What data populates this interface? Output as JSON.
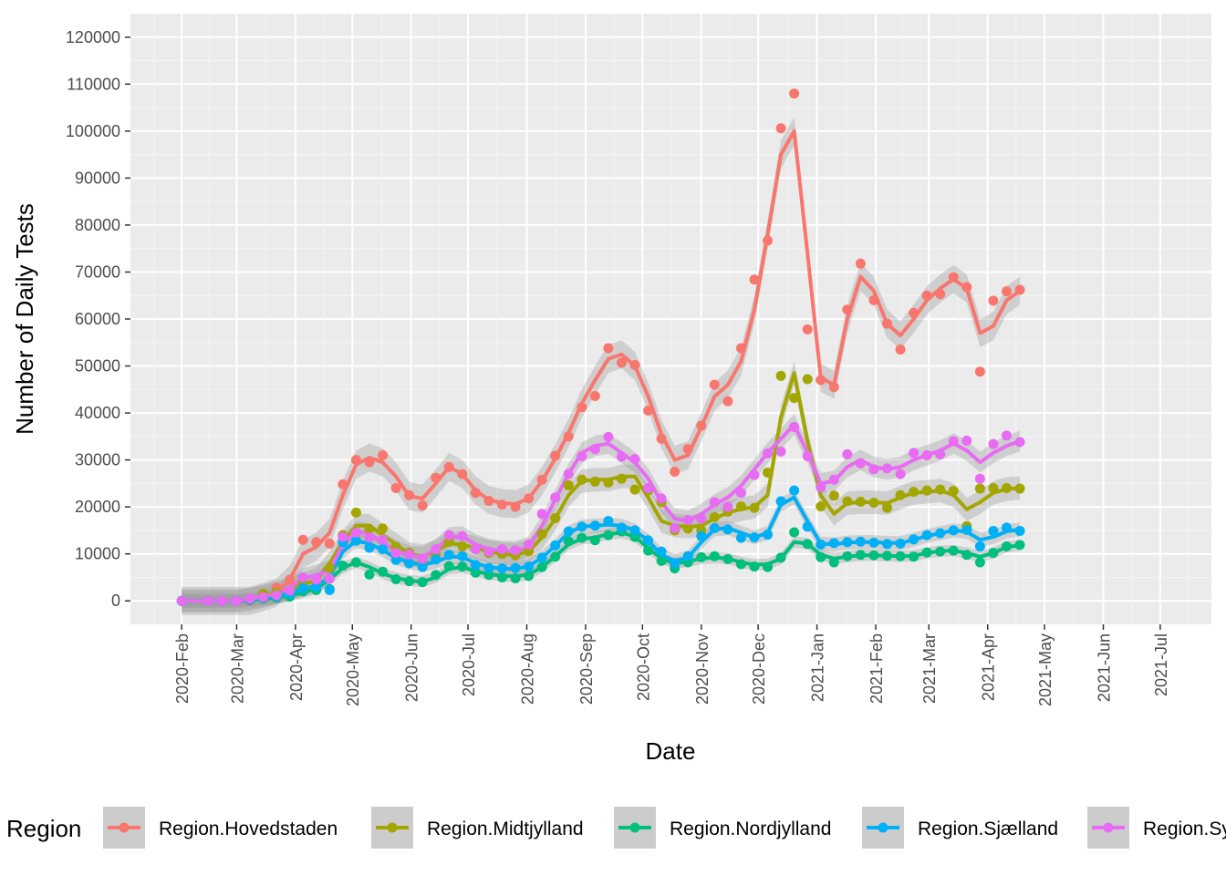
{
  "chart_data": {
    "type": "line",
    "title": "",
    "xlabel": "Date",
    "ylabel": "Number of Daily Tests",
    "ylim": [
      -5000,
      125000
    ],
    "xlim": [
      "2020-01-05",
      "2021-07-28"
    ],
    "grid": true,
    "legend": {
      "title": "Region",
      "position": "bottom"
    },
    "x_ticks": [
      "2020-Feb",
      "2020-Mar",
      "2020-Apr",
      "2020-May",
      "2020-Jun",
      "2020-Jul",
      "2020-Aug",
      "2020-Sep",
      "2020-Oct",
      "2020-Nov",
      "2020-Dec",
      "2021-Jan",
      "2021-Feb",
      "2021-Mar",
      "2021-Apr",
      "2021-May",
      "2021-Jun",
      "2021-Jul"
    ],
    "x_tick_dates": [
      "2020-02-01",
      "2020-03-01",
      "2020-04-01",
      "2020-05-01",
      "2020-06-01",
      "2020-07-01",
      "2020-08-01",
      "2020-09-01",
      "2020-10-01",
      "2020-11-01",
      "2020-12-01",
      "2021-01-01",
      "2021-02-01",
      "2021-03-01",
      "2021-04-01",
      "2021-05-01",
      "2021-06-01",
      "2021-07-01"
    ],
    "y_ticks": [
      0,
      10000,
      20000,
      30000,
      40000,
      50000,
      60000,
      70000,
      80000,
      90000,
      100000,
      110000,
      120000
    ],
    "dates": [
      "2020-02-01",
      "2020-02-15",
      "2020-02-22",
      "2020-03-01",
      "2020-03-08",
      "2020-03-15",
      "2020-03-22",
      "2020-03-29",
      "2020-04-05",
      "2020-04-12",
      "2020-04-19",
      "2020-04-26",
      "2020-05-03",
      "2020-05-10",
      "2020-05-17",
      "2020-05-24",
      "2020-05-31",
      "2020-06-07",
      "2020-06-14",
      "2020-06-21",
      "2020-06-28",
      "2020-07-05",
      "2020-07-12",
      "2020-07-19",
      "2020-07-26",
      "2020-08-02",
      "2020-08-09",
      "2020-08-16",
      "2020-08-23",
      "2020-08-30",
      "2020-09-06",
      "2020-09-13",
      "2020-09-20",
      "2020-09-27",
      "2020-10-04",
      "2020-10-11",
      "2020-10-18",
      "2020-10-25",
      "2020-11-01",
      "2020-11-08",
      "2020-11-15",
      "2020-11-22",
      "2020-11-29",
      "2020-12-06",
      "2020-12-13",
      "2020-12-20",
      "2020-12-27",
      "2021-01-03",
      "2021-01-10",
      "2021-01-17",
      "2021-01-24",
      "2021-01-31",
      "2021-02-07",
      "2021-02-14",
      "2021-02-21",
      "2021-02-28",
      "2021-03-07",
      "2021-03-14",
      "2021-03-21",
      "2021-03-28",
      "2021-04-04",
      "2021-04-11",
      "2021-04-18"
    ],
    "series": [
      {
        "name": "Region.Hovedstaden",
        "color": "#F8766D",
        "points": [
          0,
          0,
          0,
          0,
          0,
          1500,
          2800,
          4500,
          13000,
          12500,
          12200,
          24800,
          30000,
          29500,
          31000,
          24000,
          22500,
          20300,
          26200,
          28500,
          27000,
          23000,
          21300,
          20500,
          20000,
          21800,
          25800,
          30900,
          35000,
          41200,
          43600,
          53800,
          50700,
          50200,
          40500,
          34500,
          27500,
          32300,
          37300,
          46000,
          42500,
          53800,
          68400,
          76700,
          100600,
          108000,
          57800,
          47000,
          45500,
          62000,
          71800,
          64000,
          59000,
          53500,
          61300,
          65000,
          65300,
          68900,
          66800,
          48800,
          63900,
          65900,
          66200
        ],
        "fit": [
          0,
          0,
          0,
          0,
          0,
          800,
          1800,
          4500,
          10000,
          11500,
          14500,
          22500,
          29000,
          30500,
          29500,
          26500,
          22300,
          21800,
          25000,
          28500,
          27000,
          23500,
          21500,
          20800,
          20600,
          21800,
          25500,
          30300,
          35700,
          42000,
          47000,
          51500,
          52500,
          50000,
          43500,
          35500,
          30000,
          31000,
          37000,
          43500,
          46000,
          51000,
          62000,
          78000,
          95000,
          100000,
          74000,
          47500,
          46000,
          60000,
          69000,
          66000,
          59000,
          56500,
          60000,
          64000,
          66500,
          68500,
          66500,
          57000,
          58500,
          64000,
          66000
        ],
        "band": 3000
      },
      {
        "name": "Region.Midtjylland",
        "color": "#A3A500",
        "points": [
          0,
          0,
          0,
          0,
          300,
          1500,
          1800,
          2200,
          3800,
          4000,
          7000,
          14000,
          18800,
          15300,
          15400,
          11500,
          10300,
          8500,
          9700,
          12600,
          11600,
          11000,
          10200,
          10000,
          9700,
          10600,
          14200,
          17600,
          24600,
          25800,
          25400,
          25200,
          26000,
          23700,
          23500,
          21000,
          15000,
          15400,
          15000,
          17800,
          19000,
          20100,
          19800,
          27300,
          47900,
          43200,
          47200,
          20100,
          22400,
          21200,
          21100,
          20900,
          19800,
          22500,
          23200,
          23500,
          23700,
          23400,
          15900,
          23900,
          24000,
          24000,
          23900
        ],
        "fit": [
          0,
          0,
          0,
          0,
          300,
          1000,
          1800,
          2500,
          3500,
          4500,
          8000,
          12500,
          16000,
          16000,
          14000,
          12000,
          10000,
          9500,
          10500,
          12200,
          12000,
          11200,
          10500,
          10000,
          9800,
          10500,
          13500,
          17500,
          22500,
          25500,
          25800,
          25800,
          26500,
          26500,
          22000,
          17000,
          16000,
          15800,
          16000,
          17500,
          18800,
          19500,
          20000,
          22500,
          39000,
          48500,
          34000,
          22500,
          18500,
          20800,
          21000,
          21000,
          20800,
          22000,
          23000,
          23200,
          23500,
          22500,
          19500,
          21000,
          23000,
          23800,
          24000
        ],
        "band": 2500
      },
      {
        "name": "Region.Nordjylland",
        "color": "#00BF7D",
        "points": [
          0,
          0,
          0,
          0,
          200,
          500,
          700,
          900,
          2000,
          2300,
          2500,
          7500,
          8200,
          5600,
          6200,
          4600,
          4200,
          4000,
          5500,
          7400,
          7300,
          6000,
          5500,
          5000,
          4800,
          5300,
          7200,
          9400,
          12700,
          13400,
          12900,
          14000,
          14800,
          13600,
          10700,
          8500,
          6900,
          8200,
          9300,
          9500,
          8900,
          7800,
          7300,
          7200,
          9200,
          14600,
          12100,
          9300,
          8200,
          9500,
          9800,
          9700,
          9600,
          9500,
          9400,
          10300,
          10500,
          10700,
          9800,
          8200,
          10200,
          11600,
          11900
        ],
        "fit": [
          0,
          0,
          0,
          0,
          200,
          400,
          700,
          1100,
          1800,
          2600,
          4500,
          7000,
          8200,
          7200,
          5800,
          4900,
          4300,
          4100,
          5000,
          6800,
          7200,
          6300,
          5700,
          5300,
          5200,
          5600,
          7200,
          9500,
          12000,
          13200,
          13500,
          14200,
          14500,
          13700,
          11200,
          9000,
          8000,
          8400,
          9000,
          9200,
          9000,
          8200,
          7700,
          7800,
          9000,
          12500,
          12200,
          9800,
          9000,
          9400,
          9700,
          9700,
          9600,
          9500,
          9600,
          10200,
          10600,
          10700,
          10200,
          9400,
          10200,
          11500,
          11800
        ],
        "band": 1200
      },
      {
        "name": "Region.Sjælland",
        "color": "#00B0F6",
        "points": [
          0,
          0,
          0,
          0,
          300,
          700,
          1000,
          1500,
          2700,
          3000,
          2300,
          12500,
          12800,
          11300,
          11000,
          8700,
          8000,
          7200,
          8800,
          9800,
          9500,
          7600,
          7000,
          6900,
          7000,
          7300,
          9200,
          11800,
          14800,
          15800,
          16000,
          17000,
          15600,
          15000,
          12900,
          10500,
          8000,
          9500,
          13800,
          15500,
          15200,
          13400,
          13500,
          14100,
          21200,
          23500,
          15800,
          12000,
          12300,
          12500,
          12600,
          12400,
          12100,
          12200,
          13100,
          14000,
          14400,
          15000,
          15100,
          11600,
          14900,
          15600,
          14900
        ],
        "fit": [
          0,
          0,
          0,
          0,
          300,
          600,
          1000,
          1600,
          2700,
          3000,
          5000,
          10500,
          12800,
          12200,
          10800,
          9200,
          8200,
          7700,
          8300,
          9400,
          9300,
          8000,
          7200,
          6900,
          6800,
          7400,
          9200,
          11700,
          14500,
          15800,
          16000,
          16200,
          16000,
          15000,
          12800,
          9800,
          8500,
          9200,
          12500,
          15200,
          15500,
          14500,
          13500,
          14500,
          20500,
          22000,
          17000,
          12200,
          12000,
          12400,
          12500,
          12500,
          12300,
          12300,
          13000,
          13800,
          14400,
          15000,
          14700,
          13000,
          13600,
          14800,
          15200
        ],
        "band": 1500
      },
      {
        "name": "Region.Syddanmark",
        "color": "#E76BF3",
        "points": [
          0,
          0,
          0,
          0,
          500,
          800,
          1200,
          2200,
          5000,
          4500,
          4700,
          13600,
          14500,
          13500,
          13000,
          10200,
          9900,
          9000,
          11000,
          14000,
          13800,
          11000,
          10500,
          11000,
          10800,
          12000,
          18500,
          22000,
          27000,
          30800,
          32300,
          34900,
          30700,
          30200,
          24000,
          21800,
          15500,
          17200,
          17500,
          21000,
          20000,
          23000,
          26800,
          31400,
          31800,
          37000,
          30800,
          24200,
          25800,
          31200,
          29300,
          28000,
          28200,
          27000,
          31500,
          31000,
          31200,
          34000,
          34100,
          26000,
          33400,
          35200,
          33800
        ],
        "fit": [
          0,
          0,
          0,
          0,
          500,
          900,
          1500,
          2800,
          4800,
          5500,
          6500,
          12000,
          14800,
          14300,
          12500,
          10700,
          9600,
          9300,
          11000,
          13500,
          13700,
          12000,
          11000,
          10600,
          10500,
          11500,
          16000,
          21500,
          27000,
          31500,
          33000,
          33500,
          31500,
          29500,
          26000,
          21000,
          17500,
          17000,
          18500,
          20500,
          22000,
          24500,
          28000,
          31500,
          34500,
          37500,
          31500,
          25000,
          25500,
          28500,
          30000,
          28500,
          28000,
          28500,
          30000,
          31000,
          32000,
          33500,
          32000,
          29500,
          31500,
          33000,
          34000
        ],
        "band": 2200
      }
    ]
  }
}
